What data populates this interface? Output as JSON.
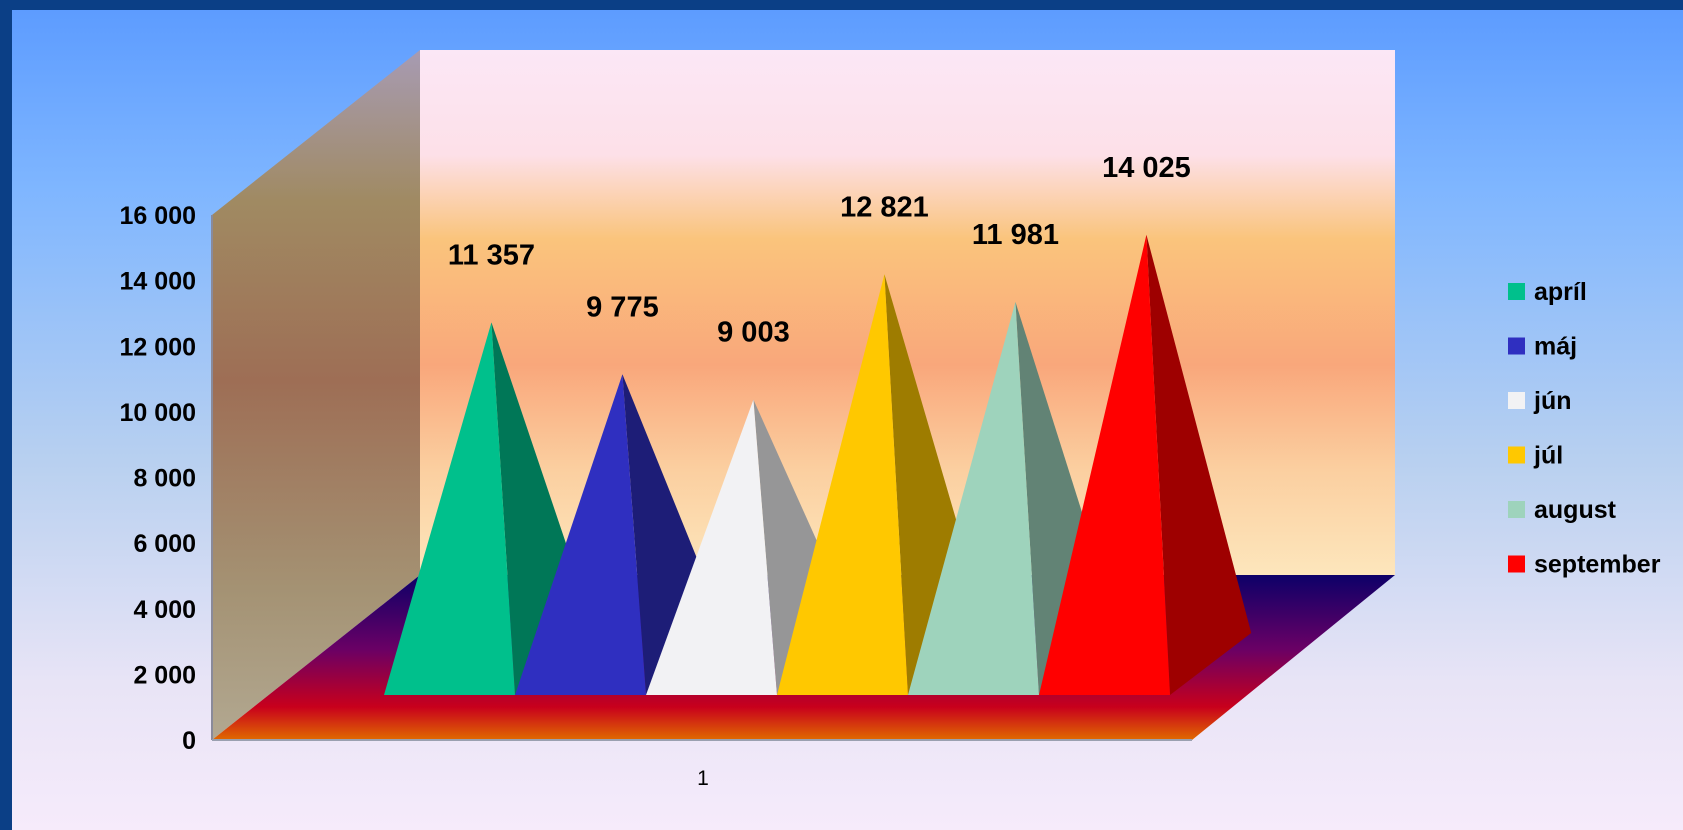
{
  "chart_data": {
    "type": "bar",
    "style": "3d-pyramid",
    "categories": [
      "1"
    ],
    "series": [
      {
        "name": "apríl",
        "values": [
          11357
        ],
        "label": "11 357",
        "color": "#00c08c"
      },
      {
        "name": "máj",
        "values": [
          9775
        ],
        "label": "9 775",
        "color": "#2f2fc0"
      },
      {
        "name": "jún",
        "values": [
          9003
        ],
        "label": "9 003",
        "color": "#f2f2f4"
      },
      {
        "name": "júl",
        "values": [
          12821
        ],
        "label": "12 821",
        "color": "#ffc800"
      },
      {
        "name": "august",
        "values": [
          11981
        ],
        "label": "11 981",
        "color": "#9ed3bc"
      },
      {
        "name": "september",
        "values": [
          14025
        ],
        "label": "14 025",
        "color": "#ff0000"
      }
    ],
    "ylim": [
      0,
      16000
    ],
    "yticks": [
      0,
      2000,
      4000,
      6000,
      8000,
      10000,
      12000,
      14000,
      16000
    ],
    "ytick_labels": [
      "0",
      "2 000",
      "4 000",
      "6 000",
      "8 000",
      "10 000",
      "12 000",
      "14 000",
      "16 000"
    ],
    "legend_position": "right",
    "grid": false
  }
}
